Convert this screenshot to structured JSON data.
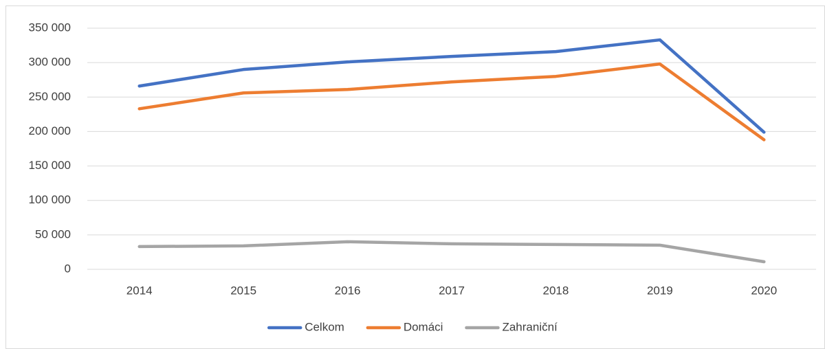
{
  "chart_data": {
    "type": "line",
    "categories": [
      "2014",
      "2015",
      "2016",
      "2017",
      "2018",
      "2019",
      "2020"
    ],
    "series": [
      {
        "name": "Celkom",
        "color": "#4472c4",
        "values": [
          266000,
          290000,
          301000,
          309000,
          316000,
          333000,
          199000
        ]
      },
      {
        "name": "Domáci",
        "color": "#ed7d31",
        "values": [
          233000,
          256000,
          261000,
          272000,
          280000,
          298000,
          188000
        ]
      },
      {
        "name": "Zahraniční",
        "color": "#a5a5a5",
        "values": [
          33000,
          34000,
          40000,
          37000,
          36000,
          35000,
          11000
        ]
      }
    ],
    "ylim": [
      0,
      350000
    ],
    "yticks": [
      0,
      {
        "value": 50000,
        "label": "50 000"
      },
      {
        "value": 100000,
        "label": "100 000"
      },
      {
        "value": 150000,
        "label": "150 000"
      },
      {
        "value": 200000,
        "label": "200 000"
      },
      {
        "value": 250000,
        "label": "250 000"
      },
      {
        "value": 300000,
        "label": "300 000"
      },
      {
        "value": 350000,
        "label": "350 000"
      }
    ],
    "grid": true,
    "legend": "bottom"
  }
}
